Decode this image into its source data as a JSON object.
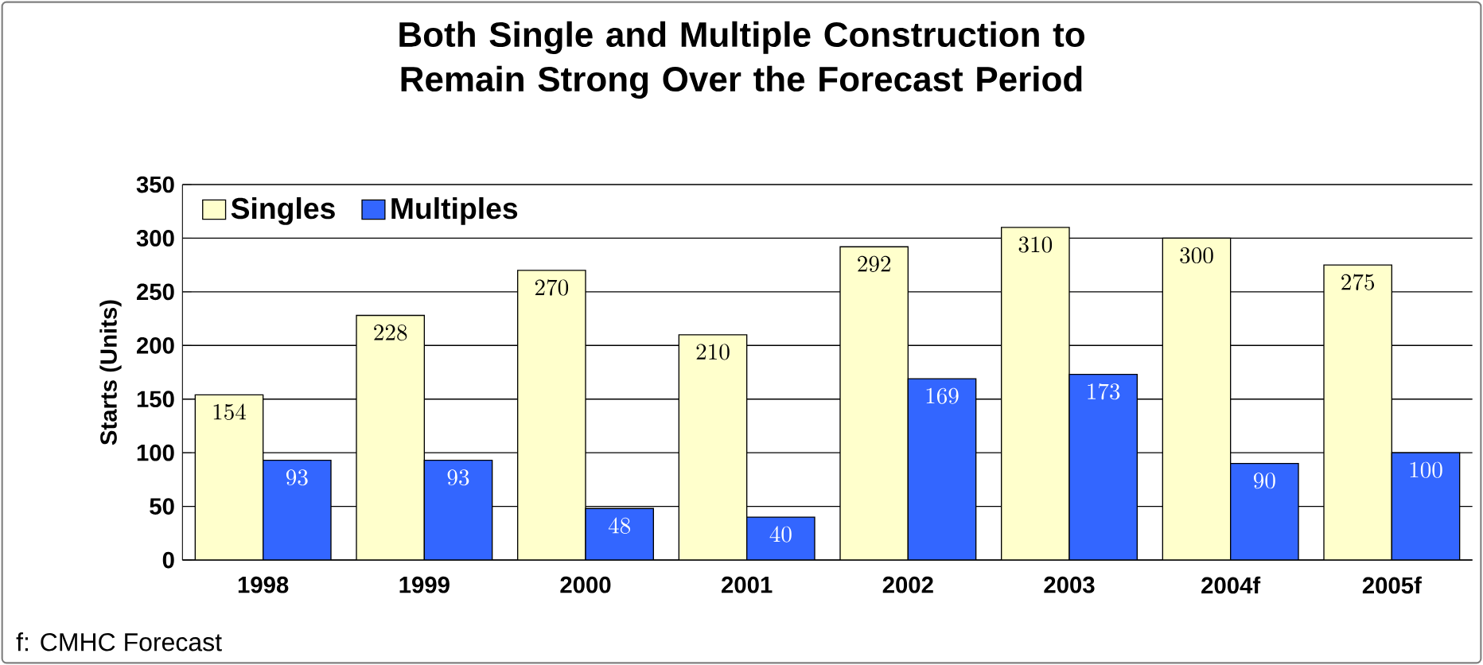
{
  "chart_data": {
    "type": "bar",
    "title": "Both Single and Multiple Construction to Remain Strong Over the Forecast Period",
    "ylabel": "Starts (Units)",
    "categories": [
      "1998",
      "1999",
      "2000",
      "2001",
      "2002",
      "2003",
      "2004f",
      "2005f"
    ],
    "series": [
      {
        "name": "Singles",
        "color": "#ffffcc",
        "values": [
          154,
          228,
          270,
          210,
          292,
          310,
          300,
          275
        ]
      },
      {
        "name": "Multiples",
        "color": "#3366ff",
        "values": [
          93,
          93,
          48,
          40,
          169,
          173,
          90,
          100
        ]
      }
    ],
    "ylim": [
      0,
      350
    ],
    "yticks": [
      0,
      50,
      100,
      150,
      200,
      250,
      300,
      350
    ],
    "grid": "y",
    "legend": "top left",
    "data_labels": true,
    "annotations": [
      "f: CMHC Forecast"
    ]
  }
}
